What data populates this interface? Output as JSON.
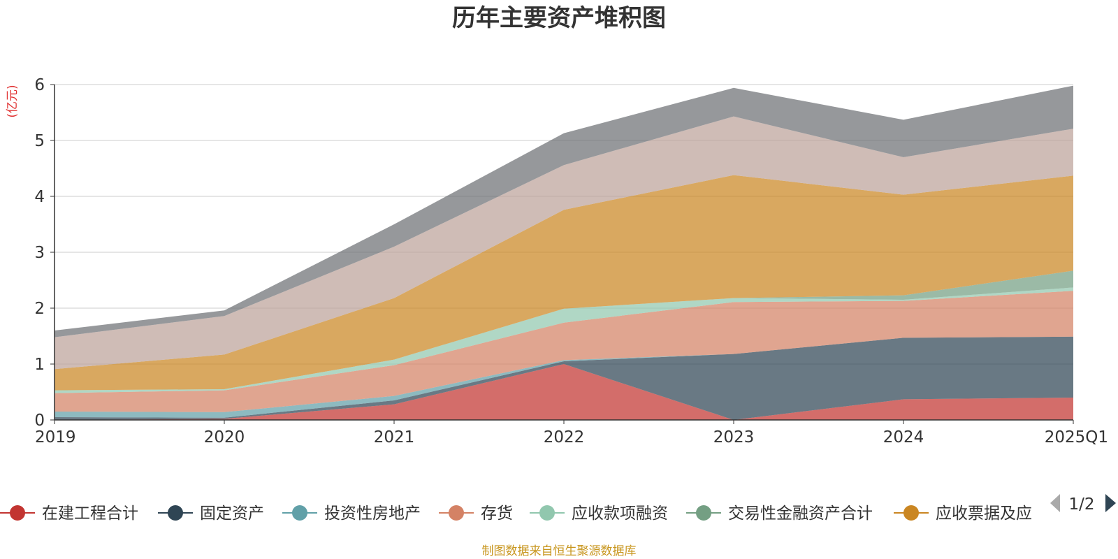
{
  "chart_data": {
    "type": "area",
    "stacked": true,
    "title": "历年主要资产堆积图",
    "unit_label": "(亿元)",
    "categories": [
      "2019",
      "2020",
      "2021",
      "2022",
      "2023",
      "2024",
      "2025Q1"
    ],
    "ylim": [
      0,
      6
    ],
    "y_ticks": [
      0,
      1,
      2,
      3,
      4,
      5,
      6
    ],
    "grid": true,
    "legend_position": "bottom",
    "series": [
      {
        "name": "在建工程合计",
        "color": "#c23531",
        "values": [
          0.0,
          0.02,
          0.28,
          1.0,
          0.0,
          0.37,
          0.4
        ]
      },
      {
        "name": "固定资产",
        "color": "#2f4554",
        "values": [
          0.05,
          0.02,
          0.07,
          0.05,
          1.18,
          1.1,
          1.09
        ]
      },
      {
        "name": "投资性房地产",
        "color": "#61a0a8",
        "values": [
          0.1,
          0.1,
          0.08,
          0.02,
          0.0,
          0.0,
          0.0
        ]
      },
      {
        "name": "存货",
        "color": "#d48265",
        "values": [
          0.33,
          0.39,
          0.55,
          0.67,
          0.93,
          0.66,
          0.82
        ]
      },
      {
        "name": "应收款项融资",
        "color": "#91c7ae",
        "values": [
          0.05,
          0.02,
          0.1,
          0.25,
          0.07,
          0.02,
          0.06
        ]
      },
      {
        "name": "交易性金融资产合计",
        "color": "#749f83",
        "values": [
          0.0,
          0.0,
          0.0,
          0.0,
          0.0,
          0.08,
          0.3
        ]
      },
      {
        "name": "应收票据及应",
        "color": "#ca8622",
        "values": [
          0.38,
          0.62,
          1.1,
          1.77,
          2.2,
          1.8,
          1.7
        ]
      },
      {
        "name": "",
        "color": "#bda29a",
        "values": [
          0.57,
          0.69,
          0.92,
          0.8,
          1.05,
          0.67,
          0.84
        ]
      },
      {
        "name": "",
        "color": "#6e7074",
        "values": [
          0.12,
          0.1,
          0.4,
          0.57,
          0.51,
          0.67,
          0.77
        ]
      }
    ],
    "legend_page": "1/2",
    "source_note": "制图数据来自恒生聚源数据库"
  }
}
